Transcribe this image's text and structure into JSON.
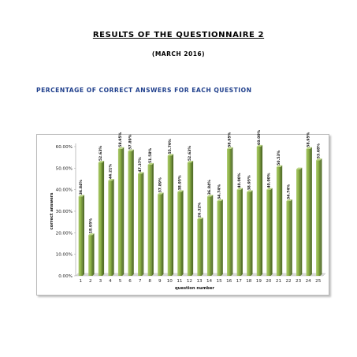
{
  "document": {
    "title": "RESULTS OF THE QUESTIONNAIRE 2",
    "subtitle": "(MARCH 2016)",
    "section_title": "PERCENTAGE OF CORRECT ANSWERS FOR EACH QUESTION"
  },
  "chart_data": {
    "type": "bar",
    "title": "",
    "xlabel": "question number",
    "ylabel": "correct answers",
    "ylim": [
      0,
      60
    ],
    "yticks": [
      "0.00%",
      "10.00%",
      "20.00%",
      "30.00%",
      "40.00%",
      "50.00%",
      "60.00%"
    ],
    "grid": false,
    "bar_color": "#8fb34a",
    "categories": [
      "1",
      "2",
      "3",
      "4",
      "5",
      "6",
      "7",
      "8",
      "9",
      "10",
      "11",
      "12",
      "13",
      "14",
      "15",
      "16",
      "17",
      "18",
      "19",
      "20",
      "21",
      "22",
      "23",
      "24",
      "25"
    ],
    "values": [
      36.84,
      18.95,
      52.63,
      44.21,
      58.95,
      57.89,
      47.37,
      51.58,
      37.89,
      55.79,
      38.95,
      52.63,
      26.32,
      36.84,
      34.74,
      58.95,
      40.0,
      38.95,
      60.0,
      40.0,
      50.53,
      34.74,
      49.5,
      58.95,
      53.68
    ],
    "labels": [
      "36.84%",
      "18.95%",
      "52.63%",
      "44.21%",
      "58.95%",
      "57.89%",
      "47.37%",
      "51.58%",
      "37.89%",
      "55.79%",
      "38.95%",
      "52.63%",
      "26.32%",
      "36.84%",
      "34.74%",
      "58.95%",
      "40.00%",
      "38.95%",
      "60.00%",
      "40.00%",
      "50.53%",
      "34.74%",
      "",
      "58.95%",
      "53.68%"
    ]
  }
}
